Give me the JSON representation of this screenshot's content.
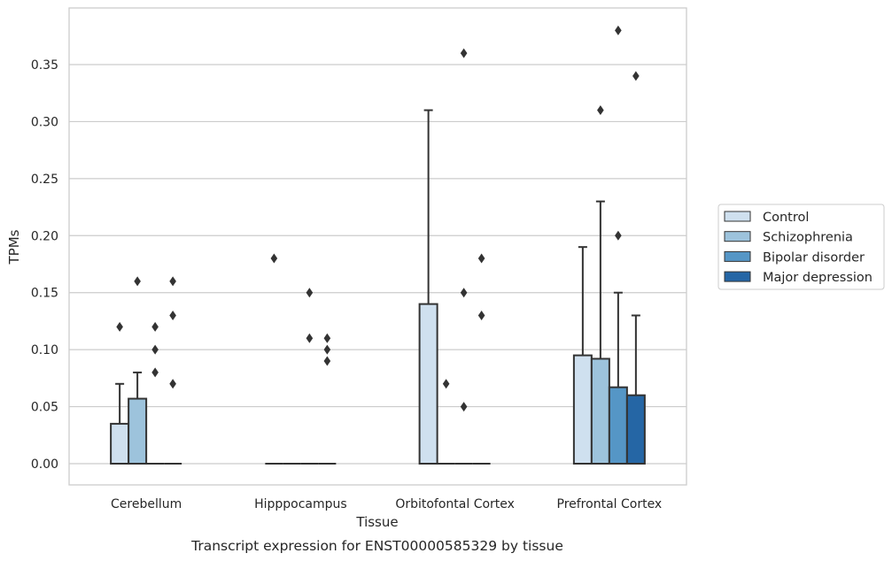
{
  "chart_data": {
    "type": "box",
    "xlabel": "Tissue",
    "ylabel": "TPMs",
    "caption": "Transcript expression for ENST00000585329 by tissue",
    "ylim": [
      -0.018,
      0.4
    ],
    "yticks": [
      0.0,
      0.05,
      0.1,
      0.15,
      0.2,
      0.25,
      0.3,
      0.35
    ],
    "ytick_labels": [
      "0.00",
      "0.05",
      "0.10",
      "0.15",
      "0.20",
      "0.25",
      "0.30",
      "0.35"
    ],
    "grid": "horizontal",
    "legend_position": "right",
    "categories": [
      "Cerebellum",
      "Hipppocampus",
      "Orbitofontal Cortex",
      "Prefrontal Cortex"
    ],
    "series": [
      {
        "name": "Control",
        "color": "#cfe0ef",
        "boxes": [
          {
            "q1": 0.0,
            "median": 0.0,
            "q3": 0.035,
            "whisker_low": 0.0,
            "whisker_high": 0.07,
            "outliers": [
              0.12
            ]
          },
          {
            "q1": 0.0,
            "median": 0.0,
            "q3": 0.0,
            "whisker_low": 0.0,
            "whisker_high": 0.0,
            "outliers": [
              0.18
            ]
          },
          {
            "q1": 0.0,
            "median": 0.0,
            "q3": 0.14,
            "whisker_low": 0.0,
            "whisker_high": 0.31,
            "outliers": []
          },
          {
            "q1": 0.0,
            "median": 0.0,
            "q3": 0.095,
            "whisker_low": 0.0,
            "whisker_high": 0.19,
            "outliers": []
          }
        ]
      },
      {
        "name": "Schizophrenia",
        "color": "#9dc3dc",
        "boxes": [
          {
            "q1": 0.0,
            "median": 0.0,
            "q3": 0.057,
            "whisker_low": 0.0,
            "whisker_high": 0.08,
            "outliers": [
              0.16
            ]
          },
          {
            "q1": 0.0,
            "median": 0.0,
            "q3": 0.0,
            "whisker_low": 0.0,
            "whisker_high": 0.0,
            "outliers": []
          },
          {
            "q1": 0.0,
            "median": 0.0,
            "q3": 0.0,
            "whisker_low": 0.0,
            "whisker_high": 0.0,
            "outliers": [
              0.07
            ]
          },
          {
            "q1": 0.0,
            "median": 0.0,
            "q3": 0.092,
            "whisker_low": 0.0,
            "whisker_high": 0.23,
            "outliers": [
              0.31
            ]
          }
        ]
      },
      {
        "name": "Bipolar disorder",
        "color": "#5596c6",
        "boxes": [
          {
            "q1": 0.0,
            "median": 0.0,
            "q3": 0.0,
            "whisker_low": 0.0,
            "whisker_high": 0.0,
            "outliers": [
              0.08,
              0.1,
              0.12
            ]
          },
          {
            "q1": 0.0,
            "median": 0.0,
            "q3": 0.0,
            "whisker_low": 0.0,
            "whisker_high": 0.0,
            "outliers": [
              0.11,
              0.15
            ]
          },
          {
            "q1": 0.0,
            "median": 0.0,
            "q3": 0.0,
            "whisker_low": 0.0,
            "whisker_high": 0.0,
            "outliers": [
              0.05,
              0.15,
              0.36
            ]
          },
          {
            "q1": 0.0,
            "median": 0.0,
            "q3": 0.067,
            "whisker_low": 0.0,
            "whisker_high": 0.15,
            "outliers": [
              0.2,
              0.38
            ]
          }
        ]
      },
      {
        "name": "Major depression",
        "color": "#2566a5",
        "boxes": [
          {
            "q1": 0.0,
            "median": 0.0,
            "q3": 0.0,
            "whisker_low": 0.0,
            "whisker_high": 0.0,
            "outliers": [
              0.07,
              0.13,
              0.16
            ]
          },
          {
            "q1": 0.0,
            "median": 0.0,
            "q3": 0.0,
            "whisker_low": 0.0,
            "whisker_high": 0.0,
            "outliers": [
              0.09,
              0.1,
              0.11
            ]
          },
          {
            "q1": 0.0,
            "median": 0.0,
            "q3": 0.0,
            "whisker_low": 0.0,
            "whisker_high": 0.0,
            "outliers": [
              0.13,
              0.18
            ]
          },
          {
            "q1": 0.0,
            "median": 0.0,
            "q3": 0.06,
            "whisker_low": 0.0,
            "whisker_high": 0.13,
            "outliers": [
              0.34
            ]
          }
        ]
      }
    ]
  }
}
